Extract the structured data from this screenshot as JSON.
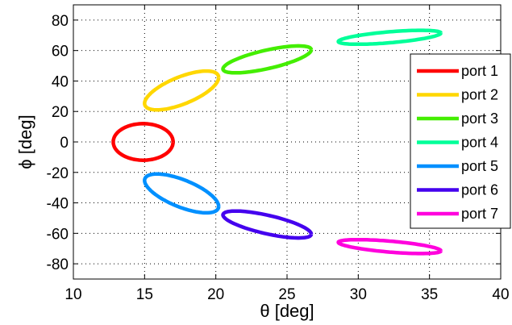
{
  "chart_data": {
    "type": "line",
    "title": "",
    "xlabel": "θ [deg]",
    "ylabel": "ϕ [deg]",
    "xlim": [
      10,
      40
    ],
    "ylim": [
      -90,
      90
    ],
    "xticks": [
      10,
      15,
      20,
      25,
      30,
      35,
      40
    ],
    "yticks": [
      -80,
      -60,
      -40,
      -20,
      0,
      20,
      40,
      60,
      80
    ],
    "grid": true,
    "legend_position": "right",
    "series": [
      {
        "name": "port 1",
        "color": "#ff0000",
        "center": [
          14.9,
          0.0
        ],
        "half_width": 2.1,
        "half_height": 12.0,
        "tilt": 0.0
      },
      {
        "name": "port 2",
        "color": "#ffd700",
        "center": [
          17.6,
          33.8
        ],
        "half_width": 2.6,
        "half_height": 9.5,
        "tilt": 8.5
      },
      {
        "name": "port 3",
        "color": "#44ee00",
        "center": [
          23.6,
          54.2
        ],
        "half_width": 3.1,
        "half_height": 6.2,
        "tilt": 6.3
      },
      {
        "name": "port 4",
        "color": "#00ff99",
        "center": [
          32.2,
          68.7
        ],
        "half_width": 3.6,
        "half_height": 3.6,
        "tilt": 2.8
      },
      {
        "name": "port 5",
        "color": "#0090ff",
        "center": [
          17.6,
          -33.8
        ],
        "half_width": 2.6,
        "half_height": 9.5,
        "tilt": -8.5
      },
      {
        "name": "port 6",
        "color": "#4400ee",
        "center": [
          23.6,
          -54.2
        ],
        "half_width": 3.1,
        "half_height": 6.2,
        "tilt": -6.3
      },
      {
        "name": "port 7",
        "color": "#ff00dd",
        "center": [
          32.2,
          -68.7
        ],
        "half_width": 3.6,
        "half_height": 3.6,
        "tilt": -2.8
      }
    ]
  }
}
